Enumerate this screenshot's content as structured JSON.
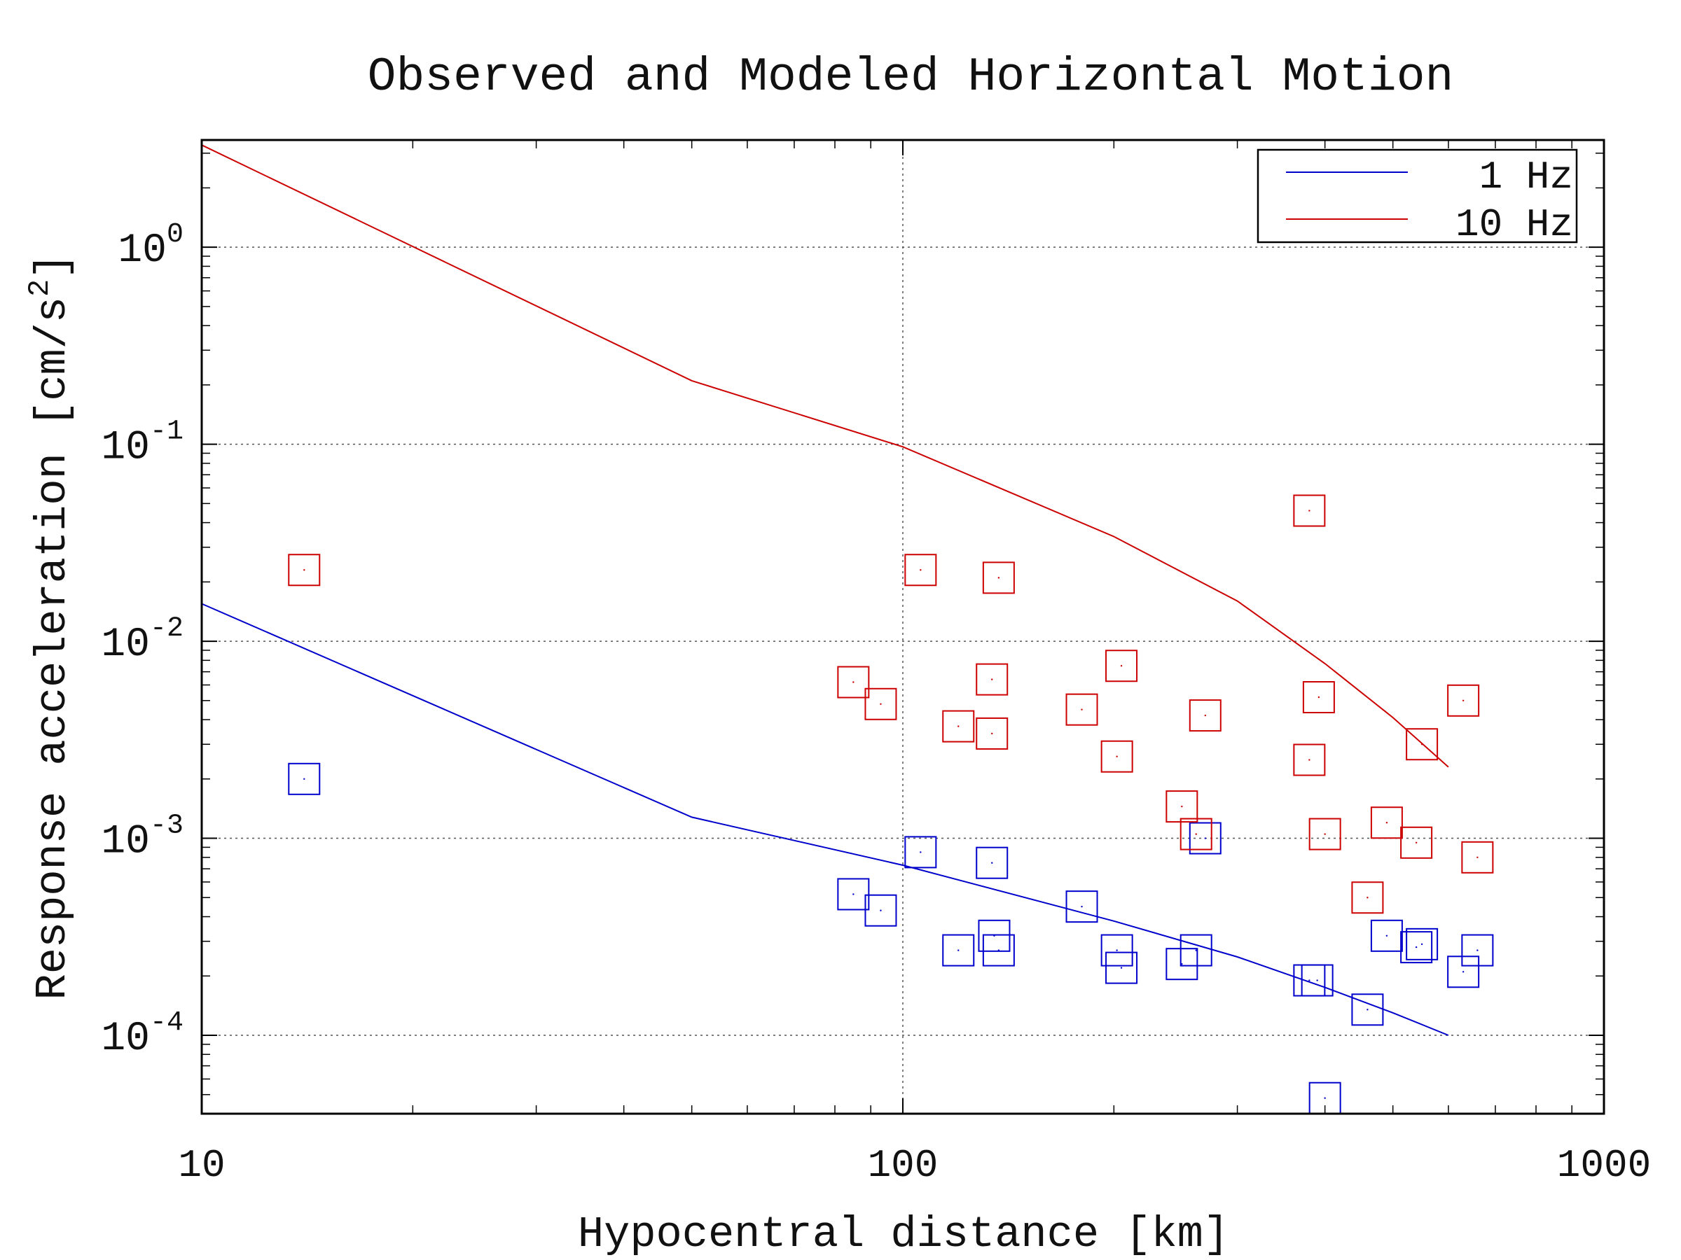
{
  "chart_data": {
    "type": "scatter",
    "title": "Observed and Modeled Horizontal Motion",
    "xlabel": "Hypocentral distance [km]",
    "ylabel": "Response acceleration [cm/s",
    "ylabel_sup": "2",
    "ylabel_end": "]",
    "x_scale": "log",
    "y_scale": "log",
    "xlim": [
      10,
      1000
    ],
    "ylim": [
      4e-05,
      3.5
    ],
    "grid": true,
    "legend_position": "top-right",
    "x_ticks": [
      {
        "value": 10,
        "label": "10"
      },
      {
        "value": 100,
        "label": "100"
      },
      {
        "value": 1000,
        "label": "1000"
      }
    ],
    "y_ticks": [
      {
        "value": 1,
        "base": "10",
        "exp": "0"
      },
      {
        "value": 0.1,
        "base": "10",
        "exp": "-1"
      },
      {
        "value": 0.01,
        "base": "10",
        "exp": "-2"
      },
      {
        "value": 0.001,
        "base": "10",
        "exp": "-3"
      },
      {
        "value": 0.0001,
        "base": "10",
        "exp": "-4"
      }
    ],
    "series": [
      {
        "name": "1 Hz",
        "color": "#0000cc",
        "model_x": [
          10,
          50,
          100,
          200,
          300,
          400,
          500,
          600
        ],
        "model_y": [
          0.0155,
          0.00128,
          0.00073,
          0.00038,
          0.00025,
          0.000175,
          0.00013,
          0.0001
        ],
        "observed": [
          [
            14,
            0.002
          ],
          [
            85,
            0.00052
          ],
          [
            93,
            0.00043
          ],
          [
            106,
            0.00085
          ],
          [
            120,
            0.00027
          ],
          [
            134,
            0.00075
          ],
          [
            135,
            0.00032
          ],
          [
            137,
            0.00027
          ],
          [
            180,
            0.00045
          ],
          [
            202,
            0.00027
          ],
          [
            205,
            0.00022
          ],
          [
            250,
            0.00023
          ],
          [
            262,
            0.00027
          ],
          [
            270,
            0.001
          ],
          [
            380,
            0.00019
          ],
          [
            390,
            0.00019
          ],
          [
            400,
            4.8e-05
          ],
          [
            460,
            0.000135
          ],
          [
            490,
            0.00032
          ],
          [
            540,
            0.00028
          ],
          [
            550,
            0.00029
          ],
          [
            630,
            0.00021
          ],
          [
            660,
            0.00027
          ]
        ]
      },
      {
        "name": "10 Hz",
        "color": "#cc0000",
        "model_x": [
          10,
          50,
          100,
          200,
          300,
          400,
          500,
          600
        ],
        "model_y": [
          3.3,
          0.21,
          0.097,
          0.034,
          0.016,
          0.0077,
          0.0041,
          0.0023
        ],
        "observed": [
          [
            14,
            0.023
          ],
          [
            85,
            0.0062
          ],
          [
            93,
            0.0048
          ],
          [
            106,
            0.023
          ],
          [
            120,
            0.0037
          ],
          [
            134,
            0.0064
          ],
          [
            134,
            0.0034
          ],
          [
            137,
            0.021
          ],
          [
            180,
            0.0045
          ],
          [
            202,
            0.0026
          ],
          [
            205,
            0.0075
          ],
          [
            250,
            0.00145
          ],
          [
            262,
            0.00105
          ],
          [
            270,
            0.0042
          ],
          [
            380,
            0.0025
          ],
          [
            380,
            0.046
          ],
          [
            392,
            0.0052
          ],
          [
            400,
            0.00105
          ],
          [
            460,
            0.0005
          ],
          [
            490,
            0.0012
          ],
          [
            540,
            0.00095
          ],
          [
            550,
            0.003
          ],
          [
            630,
            0.005
          ],
          [
            660,
            0.0008
          ]
        ]
      }
    ]
  }
}
